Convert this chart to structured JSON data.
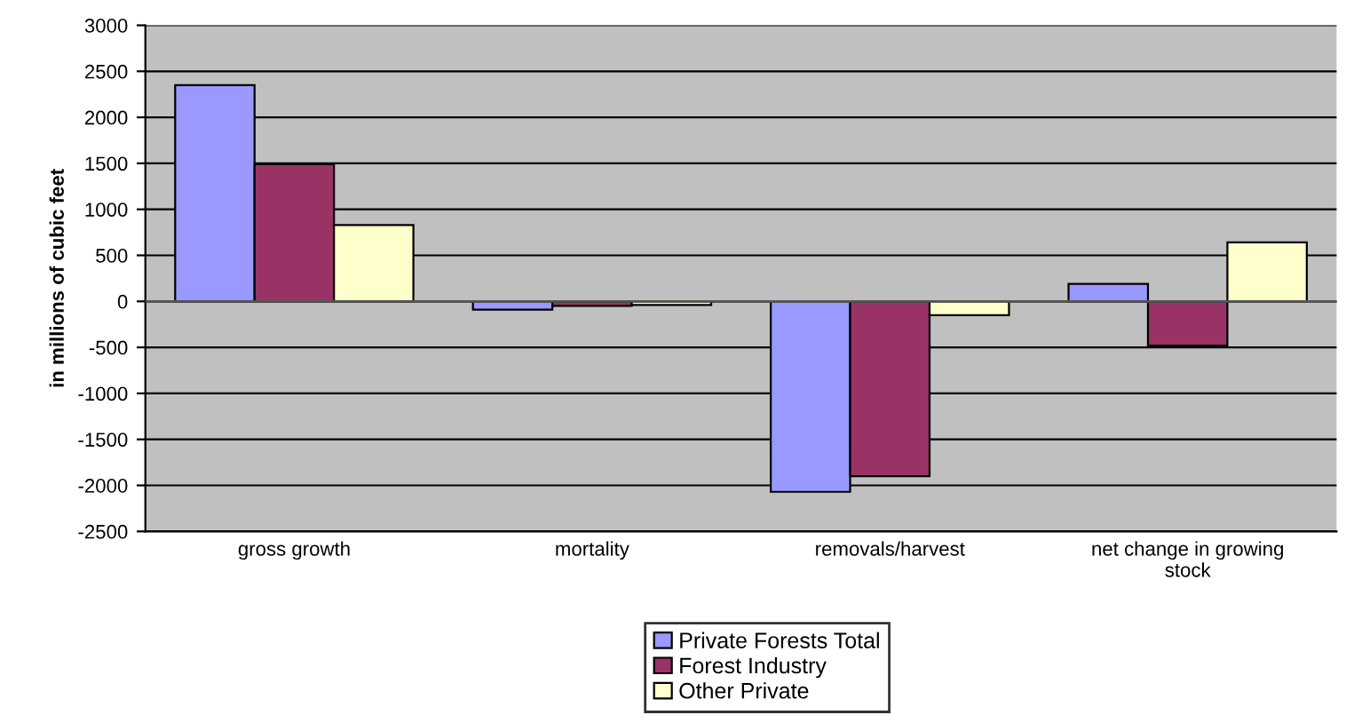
{
  "chart_data": {
    "type": "bar",
    "ylabel": "in millions of cubic feet",
    "categories": [
      "gross growth",
      "mortality",
      "removals/harvest",
      "net change in growing\nstock"
    ],
    "series": [
      {
        "name": "Private Forests Total",
        "color": "#9999ff",
        "values": [
          2350,
          -90,
          -2070,
          190
        ]
      },
      {
        "name": "Forest Industry",
        "color": "#993366",
        "values": [
          1490,
          -50,
          -1900,
          -480
        ]
      },
      {
        "name": "Other Private",
        "color": "#ffffcc",
        "values": [
          830,
          -40,
          -150,
          640
        ]
      }
    ],
    "ylim": [
      -2500,
      3000
    ],
    "yticks": [
      -2500,
      -2000,
      -1500,
      -1000,
      -500,
      0,
      500,
      1000,
      1500,
      2000,
      2500,
      3000
    ],
    "grid": "y",
    "legend": "bottom"
  }
}
